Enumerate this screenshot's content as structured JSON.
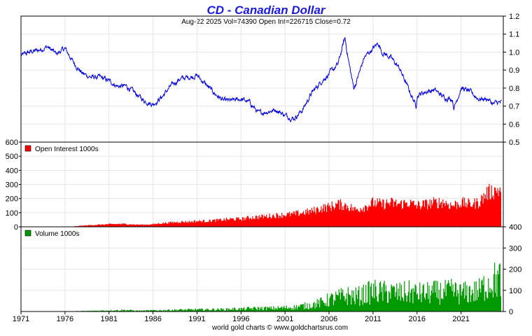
{
  "title": "CD  -  Canadian Dollar",
  "subtitle": "Aug-22  2025   Vol=74390   Open Int=226715   Close=0.72",
  "footer": "world gold charts © www.goldchartsrus.com",
  "colors": {
    "price": "#0000dd",
    "open_interest": "#ff0000",
    "volume": "#009900",
    "title": "#1a1adf",
    "grid": "#e6e6e6"
  },
  "chart_data": [
    {
      "type": "line",
      "panel": "price",
      "series": [
        {
          "x": [
            1971,
            1972,
            1973,
            1974,
            1975,
            1976,
            1977,
            1978,
            1979,
            1980,
            1981,
            1982,
            1983,
            1984,
            1985,
            1986,
            1987,
            1988,
            1989,
            1990,
            1991,
            1992,
            1993,
            1994,
            1995,
            1996,
            1997,
            1998,
            1999,
            2000,
            2001,
            2002,
            2003,
            2004,
            2005,
            2006,
            2007,
            2007.8,
            2008.3,
            2008.8,
            2009,
            2010,
            2011,
            2011.6,
            2012,
            2013,
            2014,
            2015,
            2015.9,
            2016,
            2017,
            2018,
            2019,
            2020,
            2020.2,
            2021,
            2022,
            2023,
            2024,
            2024.7,
            2025,
            2025.6
          ],
          "values": [
            0.98,
            1.0,
            1.01,
            1.03,
            0.99,
            1.02,
            0.94,
            0.88,
            0.86,
            0.86,
            0.84,
            0.81,
            0.81,
            0.77,
            0.73,
            0.71,
            0.75,
            0.81,
            0.85,
            0.86,
            0.87,
            0.82,
            0.77,
            0.73,
            0.73,
            0.74,
            0.72,
            0.66,
            0.67,
            0.68,
            0.65,
            0.63,
            0.68,
            0.77,
            0.83,
            0.88,
            0.93,
            1.08,
            0.93,
            0.8,
            0.82,
            0.97,
            1.02,
            1.05,
            1.0,
            0.97,
            0.91,
            0.8,
            0.7,
            0.76,
            0.78,
            0.79,
            0.75,
            0.74,
            0.69,
            0.8,
            0.78,
            0.74,
            0.74,
            0.71,
            0.72,
            0.72
          ]
        }
      ],
      "ylim": [
        0.5,
        1.2
      ],
      "yticks": [
        "0.5",
        "0.6",
        "0.7",
        "0.8",
        "0.9",
        "1.0",
        "1.1",
        "1.2"
      ],
      "grid": true
    },
    {
      "type": "bar",
      "panel": "open_interest",
      "series": [
        {
          "name": "Open Interest  1000s",
          "x": [
            1977,
            1978,
            1979,
            1980,
            1981,
            1982,
            1983,
            1984,
            1985,
            1986,
            1987,
            1988,
            1989,
            1990,
            1991,
            1992,
            1993,
            1994,
            1995,
            1996,
            1997,
            1998,
            1999,
            2000,
            2001,
            2002,
            2003,
            2004,
            2005,
            2006,
            2007,
            2008,
            2009,
            2010,
            2011,
            2012,
            2013,
            2014,
            2015,
            2016,
            2017,
            2018,
            2019,
            2020,
            2021,
            2022,
            2023,
            2024,
            2025
          ],
          "values": [
            3,
            8,
            12,
            15,
            18,
            20,
            20,
            15,
            15,
            18,
            25,
            30,
            35,
            35,
            40,
            40,
            45,
            50,
            55,
            55,
            65,
            70,
            75,
            80,
            85,
            90,
            100,
            110,
            130,
            140,
            160,
            150,
            120,
            140,
            170,
            160,
            170,
            160,
            170,
            150,
            160,
            170,
            175,
            150,
            170,
            160,
            170,
            240,
            260
          ]
        }
      ],
      "ylim": [
        0,
        600
      ],
      "yticks": [
        "0",
        "100",
        "200",
        "300",
        "400",
        "500",
        "600"
      ],
      "grid": true
    },
    {
      "type": "bar",
      "panel": "volume",
      "series": [
        {
          "name": "Volume  1000s",
          "x": [
            1977,
            1978,
            1979,
            1980,
            1981,
            1982,
            1983,
            1984,
            1985,
            1986,
            1987,
            1988,
            1989,
            1990,
            1991,
            1992,
            1993,
            1994,
            1995,
            1996,
            1997,
            1998,
            1999,
            2000,
            2001,
            2002,
            2003,
            2004,
            2005,
            2006,
            2007,
            2008,
            2009,
            2010,
            2011,
            2012,
            2013,
            2014,
            2015,
            2016,
            2017,
            2018,
            2019,
            2020,
            2021,
            2022,
            2023,
            2024,
            2025
          ],
          "values": [
            1,
            2,
            3,
            4,
            5,
            6,
            7,
            4,
            4,
            5,
            6,
            7,
            8,
            8,
            9,
            9,
            10,
            10,
            12,
            12,
            14,
            15,
            15,
            16,
            18,
            20,
            25,
            30,
            40,
            55,
            65,
            75,
            70,
            80,
            95,
            90,
            90,
            85,
            90,
            85,
            85,
            90,
            90,
            95,
            85,
            90,
            95,
            130,
            150
          ]
        }
      ],
      "ylim": [
        0,
        400
      ],
      "yticks": [
        "0",
        "100",
        "200",
        "300",
        "400"
      ],
      "grid": true
    }
  ],
  "x_axis": {
    "xlim": [
      1971,
      2025.8
    ],
    "tick_labels": [
      "1971",
      "1976",
      "1981",
      "1986",
      "1991",
      "1996",
      "2001",
      "2006",
      "2011",
      "2016",
      "2021"
    ]
  }
}
